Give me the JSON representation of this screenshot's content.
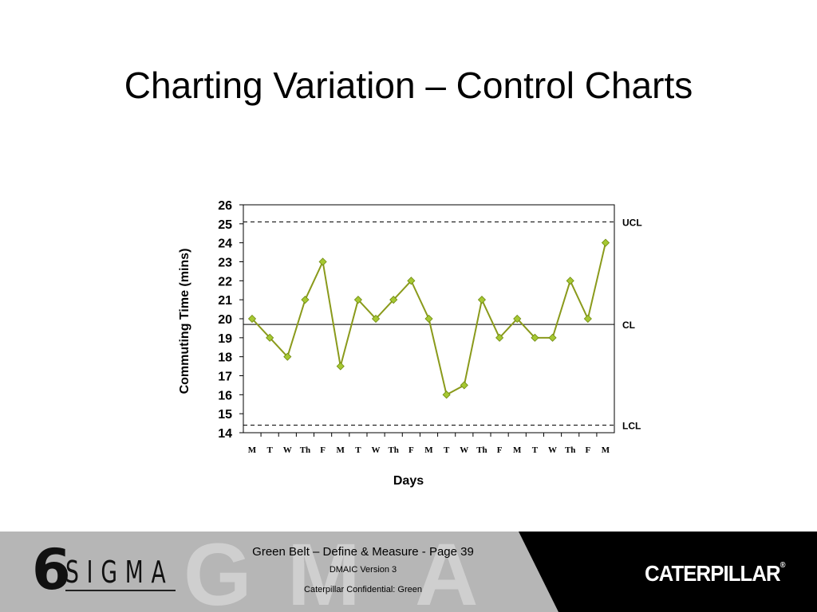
{
  "slide": {
    "title": "Charting Variation – Control Charts"
  },
  "chart_data": {
    "type": "line",
    "xlabel": "Days",
    "ylabel": "Commuting Time (mins)",
    "ylim": [
      14,
      26
    ],
    "yticks": [
      14,
      15,
      16,
      17,
      18,
      19,
      20,
      21,
      22,
      23,
      24,
      25,
      26
    ],
    "categories": [
      "M",
      "T",
      "W",
      "Th",
      "F",
      "M",
      "T",
      "W",
      "Th",
      "F",
      "M",
      "T",
      "W",
      "Th",
      "F",
      "M",
      "T",
      "W",
      "Th",
      "F",
      "M"
    ],
    "series": [
      {
        "values": [
          20,
          19,
          18,
          21,
          23,
          17.5,
          21,
          20,
          21,
          22,
          20,
          16,
          16.5,
          21,
          19,
          20,
          19,
          19,
          22,
          20,
          24
        ]
      }
    ],
    "control_limits": [
      {
        "label": "UCL",
        "value": 25.1,
        "style": "dashed"
      },
      {
        "label": "CL",
        "value": 19.7,
        "style": "solid"
      },
      {
        "label": "LCL",
        "value": 14.4,
        "style": "dashed"
      }
    ],
    "colors": {
      "line": "#8a9a1b",
      "marker_fill": "#a6c832",
      "marker_stroke": "#6f8a10"
    },
    "grid": false,
    "legend": "none"
  },
  "footer": {
    "logo_number": "6",
    "logo_word": "SIGMA",
    "line1": "Green Belt – Define & Measure - Page 39",
    "line2": "DMAIC Version 3",
    "line3": "Caterpillar Confidential: Green",
    "brand": "CATERPILLAR",
    "brand_mark": "®"
  }
}
